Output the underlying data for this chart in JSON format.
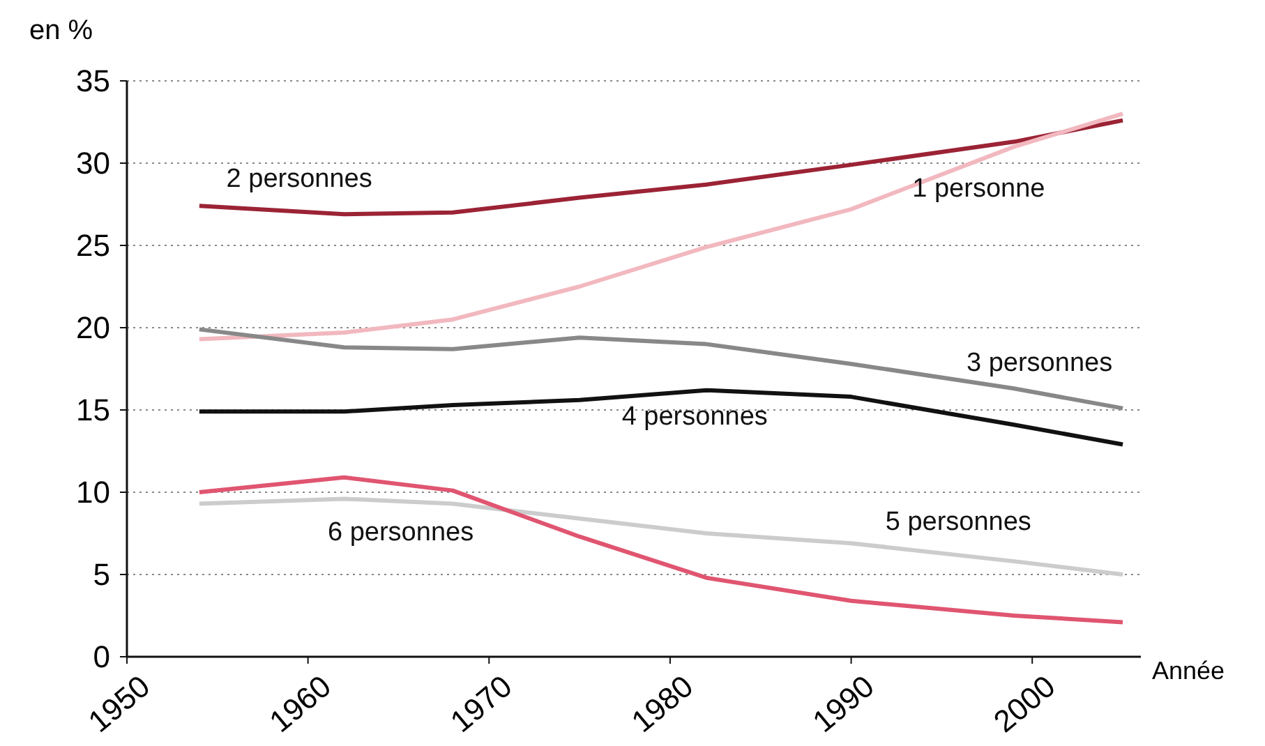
{
  "chart_data": {
    "type": "line",
    "ylabel": "en %",
    "xlabel": "Année",
    "x": [
      1954,
      1962,
      1968,
      1975,
      1982,
      1990,
      1999,
      2005
    ],
    "xlim": [
      1950,
      2006
    ],
    "xticks": [
      1950,
      1960,
      1970,
      1980,
      1990,
      2000
    ],
    "ylim": [
      0,
      35
    ],
    "yticks": [
      0,
      5,
      10,
      15,
      20,
      25,
      30,
      35
    ],
    "grid": "y",
    "marker": "none",
    "line_style": "solid",
    "series": [
      {
        "name": "2  personnes",
        "color": "#9b2335",
        "values": [
          27.4,
          26.9,
          27.0,
          27.9,
          28.7,
          29.9,
          31.3,
          32.6
        ]
      },
      {
        "name": "1  personne",
        "color": "#f2b8bf",
        "values": [
          19.3,
          19.7,
          20.5,
          22.5,
          24.9,
          27.2,
          31.0,
          33.0
        ]
      },
      {
        "name": "3  personnes",
        "color": "#888888",
        "values": [
          19.9,
          18.8,
          18.7,
          19.4,
          19.0,
          17.8,
          16.3,
          15.1
        ]
      },
      {
        "name": "4  personnes",
        "color": "#111111",
        "values": [
          14.9,
          14.9,
          15.3,
          15.6,
          16.2,
          15.8,
          14.1,
          12.9
        ]
      },
      {
        "name": "5  personnes",
        "color": "#cccccc",
        "values": [
          9.3,
          9.6,
          9.3,
          8.4,
          7.5,
          6.9,
          5.8,
          5.0
        ]
      },
      {
        "name": "6  personnes",
        "color": "#e05570",
        "values": [
          10.0,
          10.9,
          10.1,
          7.3,
          4.8,
          3.4,
          2.5,
          2.1
        ]
      }
    ]
  }
}
